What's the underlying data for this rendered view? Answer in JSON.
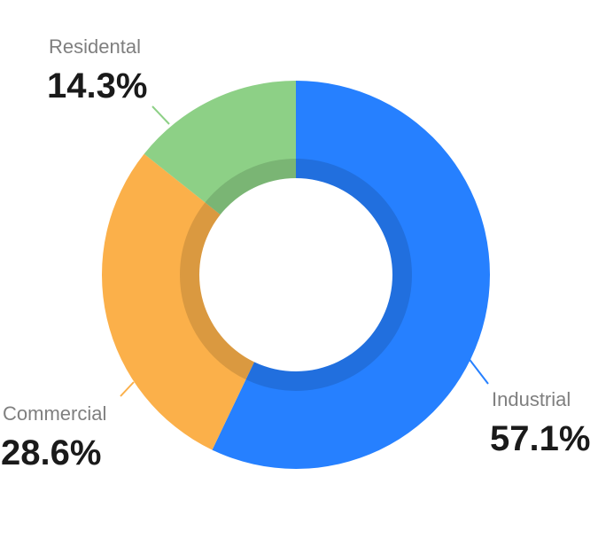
{
  "chart_data": {
    "type": "pie",
    "variant": "donut",
    "slices": [
      {
        "category": "Industrial",
        "percent_label": "57.1%",
        "value": 57.1,
        "color": "#2680FF"
      },
      {
        "category": "Commercial",
        "percent_label": "28.6%",
        "value": 28.6,
        "color": "#FBB04A"
      },
      {
        "category": "Residental",
        "percent_label": "14.3%",
        "value": 14.3,
        "color": "#8DD086"
      }
    ],
    "start": "top",
    "direction": "clockwise"
  }
}
